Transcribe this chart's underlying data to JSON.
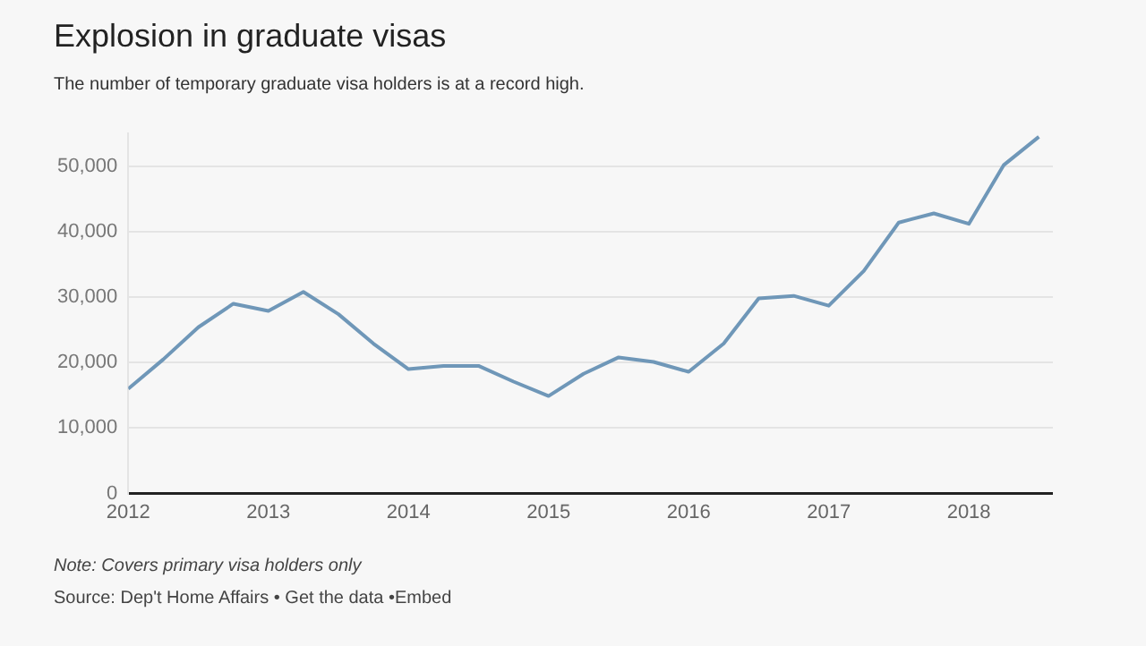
{
  "chart_data": {
    "type": "line",
    "title": "Explosion in graduate visas",
    "subtitle": "The number of temporary graduate visa holders is at a record high.",
    "x": [
      2012,
      2012.25,
      2012.5,
      2012.75,
      2013,
      2013.25,
      2013.5,
      2013.75,
      2014,
      2014.25,
      2014.5,
      2014.75,
      2015,
      2015.25,
      2015.5,
      2015.75,
      2016,
      2016.25,
      2016.5,
      2016.75,
      2017,
      2017.25,
      2017.5,
      2017.75,
      2018,
      2018.25,
      2018.5
    ],
    "series": [
      {
        "color": "#6f97b8",
        "values": [
          16000,
          20500,
          25400,
          29000,
          27900,
          30800,
          27400,
          22900,
          19000,
          19500,
          19500,
          17100,
          14900,
          18300,
          20800,
          20100,
          18600,
          22900,
          29800,
          30200,
          28700,
          34000,
          41400,
          42800,
          41200,
          50200,
          54500
        ]
      }
    ],
    "xlim": [
      2012,
      2018.6
    ],
    "xticks": [
      2012,
      2013,
      2014,
      2015,
      2016,
      2017,
      2018
    ],
    "ylim": [
      0,
      55000
    ],
    "yticks": [
      {
        "value": 0,
        "label": "0"
      },
      {
        "value": 10000,
        "label": "10,000"
      },
      {
        "value": 20000,
        "label": "20,000"
      },
      {
        "value": 30000,
        "label": "30,000"
      },
      {
        "value": 40000,
        "label": "40,000"
      },
      {
        "value": 50000,
        "label": "50,000"
      }
    ],
    "grid": "y",
    "legend": false,
    "marker": "none",
    "line_style": "solid",
    "annotations": [
      "Note: Covers primary visa holders only",
      "Source: Dep't Home Affairs • Get the data •Embed"
    ]
  }
}
